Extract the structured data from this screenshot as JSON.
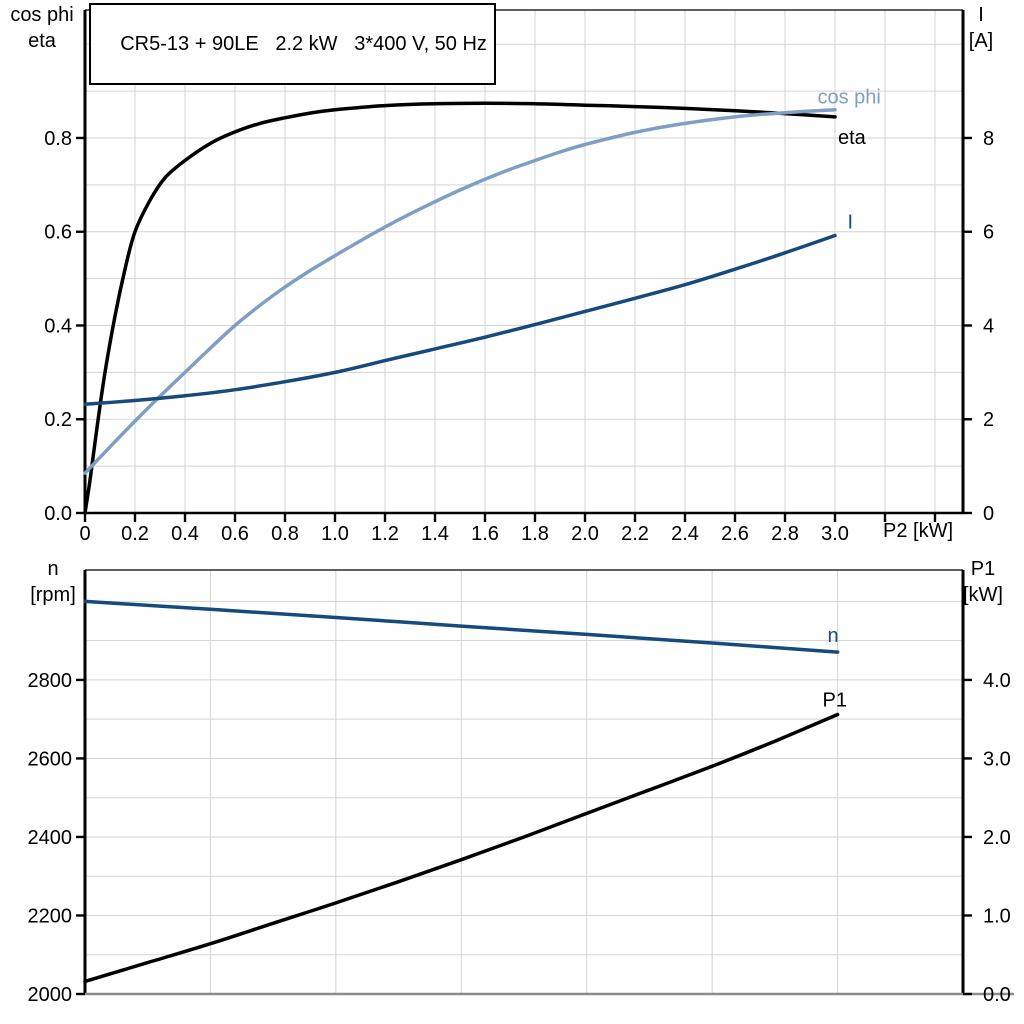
{
  "chart_data": [
    {
      "id": "top",
      "type": "line",
      "title": "CR5-13 + 90LE   2.2 kW   3*400 V, 50 Hz",
      "legend_position": "inline-labels",
      "grid": "on",
      "x_axis": {
        "label": "P2 [kW]",
        "min": 0,
        "max": 3.512,
        "ticks": [
          {
            "v": 0,
            "t": "0"
          },
          {
            "v": 0.2,
            "t": "0.2"
          },
          {
            "v": 0.4,
            "t": "0.4"
          },
          {
            "v": 0.6,
            "t": "0.6"
          },
          {
            "v": 0.8,
            "t": "0.8"
          },
          {
            "v": 1.0,
            "t": "1.0"
          },
          {
            "v": 1.2,
            "t": "1.2"
          },
          {
            "v": 1.4,
            "t": "1.4"
          },
          {
            "v": 1.6,
            "t": "1.6"
          },
          {
            "v": 1.8,
            "t": "1.8"
          },
          {
            "v": 2.0,
            "t": "2.0"
          },
          {
            "v": 2.2,
            "t": "2.2"
          },
          {
            "v": 2.4,
            "t": "2.4"
          },
          {
            "v": 2.6,
            "t": "2.6"
          },
          {
            "v": 2.8,
            "t": "2.8"
          },
          {
            "v": 3.0,
            "t": "3.0"
          }
        ],
        "tick_marks": [
          0,
          0.2,
          0.4,
          0.6,
          0.8,
          1.0,
          1.2,
          1.4,
          1.6,
          1.8,
          2.0,
          2.2,
          2.4,
          2.6,
          2.8,
          3.0,
          3.2,
          3.4
        ],
        "grid_values": [
          0.2,
          0.4,
          0.6,
          0.8,
          1.0,
          1.2,
          1.4,
          1.6,
          1.8,
          2.0,
          2.2,
          2.4,
          2.6,
          2.8,
          3.0,
          3.2,
          3.4
        ]
      },
      "y_left": {
        "label_lines": [
          "cos phi",
          "eta"
        ],
        "min": 0,
        "max": 1.073,
        "ticks": [
          {
            "v": 0,
            "t": "0.0"
          },
          {
            "v": 0.2,
            "t": "0.2"
          },
          {
            "v": 0.4,
            "t": "0.4"
          },
          {
            "v": 0.6,
            "t": "0.6"
          },
          {
            "v": 0.8,
            "t": "0.8"
          }
        ],
        "grid_values": [
          0.1,
          0.2,
          0.3,
          0.4,
          0.5,
          0.6,
          0.7,
          0.8,
          0.9,
          1.0
        ]
      },
      "y_right": {
        "label_lines": [
          "I",
          "[A]"
        ],
        "min": 0,
        "max": 10.73,
        "ticks": [
          {
            "v": 0,
            "t": "0"
          },
          {
            "v": 2,
            "t": "2"
          },
          {
            "v": 4,
            "t": "4"
          },
          {
            "v": 6,
            "t": "6"
          },
          {
            "v": 8,
            "t": "8"
          }
        ]
      },
      "series": [
        {
          "name": "eta",
          "axis": "left",
          "color": "#000000",
          "label": "eta",
          "label_at": [
            3.012,
            0.802
          ],
          "points": [
            [
              0,
              0
            ],
            [
              0.02,
              0.07
            ],
            [
              0.05,
              0.19
            ],
            [
              0.08,
              0.3
            ],
            [
              0.12,
              0.42
            ],
            [
              0.16,
              0.52
            ],
            [
              0.2,
              0.6
            ],
            [
              0.26,
              0.667
            ],
            [
              0.32,
              0.715
            ],
            [
              0.4,
              0.752
            ],
            [
              0.5,
              0.788
            ],
            [
              0.6,
              0.813
            ],
            [
              0.7,
              0.831
            ],
            [
              0.8,
              0.843
            ],
            [
              0.9,
              0.853
            ],
            [
              1.0,
              0.86
            ],
            [
              1.2,
              0.869
            ],
            [
              1.4,
              0.873
            ],
            [
              1.6,
              0.874
            ],
            [
              1.8,
              0.873
            ],
            [
              2.0,
              0.87
            ],
            [
              2.2,
              0.867
            ],
            [
              2.4,
              0.863
            ],
            [
              2.6,
              0.858
            ],
            [
              2.8,
              0.852
            ],
            [
              3.0,
              0.845
            ]
          ]
        },
        {
          "name": "cos phi",
          "axis": "left",
          "color": "#7E9FC3",
          "label": "cos phi",
          "label_at": [
            2.93,
            0.888
          ],
          "points": [
            [
              0,
              0.085
            ],
            [
              0.1,
              0.141
            ],
            [
              0.2,
              0.196
            ],
            [
              0.3,
              0.249
            ],
            [
              0.4,
              0.3
            ],
            [
              0.5,
              0.351
            ],
            [
              0.6,
              0.4
            ],
            [
              0.7,
              0.443
            ],
            [
              0.8,
              0.482
            ],
            [
              0.9,
              0.517
            ],
            [
              1.0,
              0.549
            ],
            [
              1.1,
              0.58
            ],
            [
              1.2,
              0.61
            ],
            [
              1.3,
              0.638
            ],
            [
              1.4,
              0.664
            ],
            [
              1.5,
              0.689
            ],
            [
              1.6,
              0.712
            ],
            [
              1.7,
              0.733
            ],
            [
              1.8,
              0.752
            ],
            [
              1.9,
              0.77
            ],
            [
              2.0,
              0.786
            ],
            [
              2.2,
              0.812
            ],
            [
              2.4,
              0.831
            ],
            [
              2.6,
              0.845
            ],
            [
              2.8,
              0.854
            ],
            [
              3.0,
              0.86
            ]
          ]
        },
        {
          "name": "I",
          "axis": "right",
          "color": "#174A7C",
          "label": "I",
          "label_at": [
            3.05,
            6.22
          ],
          "points": [
            [
              0,
              2.32
            ],
            [
              0.2,
              2.4
            ],
            [
              0.4,
              2.5
            ],
            [
              0.6,
              2.63
            ],
            [
              0.8,
              2.8
            ],
            [
              1.0,
              3.0
            ],
            [
              1.2,
              3.25
            ],
            [
              1.4,
              3.5
            ],
            [
              1.6,
              3.75
            ],
            [
              1.8,
              4.02
            ],
            [
              2.0,
              4.3
            ],
            [
              2.2,
              4.58
            ],
            [
              2.4,
              4.87
            ],
            [
              2.6,
              5.2
            ],
            [
              2.8,
              5.55
            ],
            [
              3.0,
              5.92
            ]
          ]
        }
      ]
    },
    {
      "id": "bottom",
      "type": "line",
      "title": "",
      "legend_position": "inline-labels",
      "grid": "on",
      "x_axis": {
        "label": "",
        "min": 0,
        "max": 3.5,
        "ticks": [],
        "tick_marks": [],
        "grid_values": [
          0.5,
          1.0,
          1.5,
          2.0,
          2.5,
          3.0,
          3.5
        ]
      },
      "y_left": {
        "label_lines": [
          "n",
          "[rpm]"
        ],
        "min": 2000,
        "max": 3080,
        "ticks": [
          {
            "v": 2000,
            "t": "2000"
          },
          {
            "v": 2200,
            "t": "2200"
          },
          {
            "v": 2400,
            "t": "2400"
          },
          {
            "v": 2600,
            "t": "2600"
          },
          {
            "v": 2800,
            "t": "2800"
          }
        ],
        "grid_values": [
          2100,
          2200,
          2300,
          2400,
          2500,
          2600,
          2700,
          2800,
          2900,
          3000
        ]
      },
      "y_right": {
        "label_lines": [
          "P1",
          "[kW]"
        ],
        "min": 0,
        "max": 5.4,
        "ticks": [
          {
            "v": 0,
            "t": "0.0"
          },
          {
            "v": 1,
            "t": "1.0"
          },
          {
            "v": 2,
            "t": "2.0"
          },
          {
            "v": 3,
            "t": "3.0"
          },
          {
            "v": 4,
            "t": "4.0"
          }
        ]
      },
      "series": [
        {
          "name": "n",
          "axis": "left",
          "color": "#174A7C",
          "label": "n",
          "label_at": [
            2.96,
            2915
          ],
          "points": [
            [
              0,
              3000
            ],
            [
              0.5,
              2980
            ],
            [
              1.0,
              2959
            ],
            [
              1.5,
              2937
            ],
            [
              2.0,
              2916
            ],
            [
              2.5,
              2894
            ],
            [
              3.0,
              2871
            ]
          ]
        },
        {
          "name": "P1",
          "axis": "right",
          "color": "#000000",
          "label": "P1",
          "label_at": [
            2.94,
            3.75
          ],
          "points": [
            [
              0,
              0.16
            ],
            [
              0.25,
              0.4
            ],
            [
              0.5,
              0.64
            ],
            [
              0.75,
              0.9
            ],
            [
              1.0,
              1.16
            ],
            [
              1.25,
              1.43
            ],
            [
              1.5,
              1.71
            ],
            [
              1.75,
              2.0
            ],
            [
              2.0,
              2.3
            ],
            [
              2.25,
              2.6
            ],
            [
              2.5,
              2.9
            ],
            [
              2.75,
              3.22
            ],
            [
              3.0,
              3.56
            ]
          ]
        }
      ]
    }
  ]
}
